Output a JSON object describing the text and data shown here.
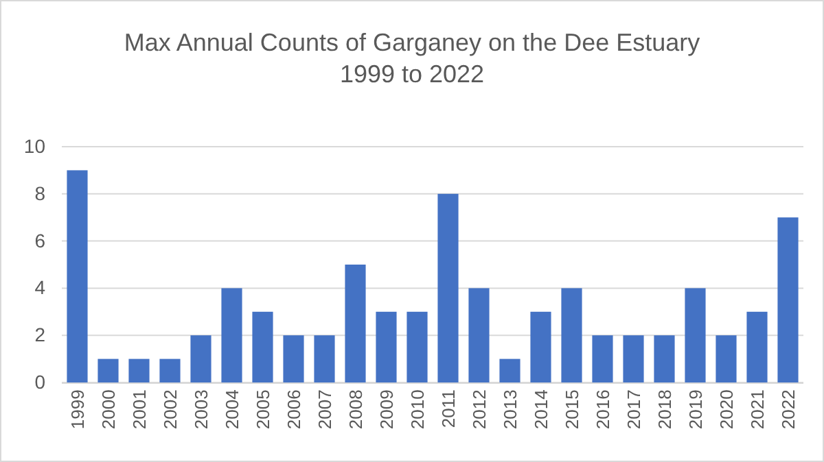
{
  "chart_data": {
    "type": "bar",
    "title": "Max Annual Counts of Garganey on the Dee Estuary",
    "subtitle": "1999 to 2022",
    "categories": [
      "1999",
      "2000",
      "2001",
      "2002",
      "2003",
      "2004",
      "2005",
      "2006",
      "2007",
      "2008",
      "2009",
      "2010",
      "2011",
      "2012",
      "2013",
      "2014",
      "2015",
      "2016",
      "2017",
      "2018",
      "2019",
      "2020",
      "2021",
      "2022"
    ],
    "values": [
      9,
      1,
      1,
      1,
      2,
      4,
      3,
      2,
      2,
      5,
      3,
      3,
      8,
      4,
      1,
      3,
      4,
      2,
      2,
      2,
      4,
      2,
      3,
      7
    ],
    "color": "#4472c4",
    "ylim": [
      0,
      10
    ],
    "yticks": [
      0,
      2,
      4,
      6,
      8,
      10
    ],
    "grid": "y"
  }
}
